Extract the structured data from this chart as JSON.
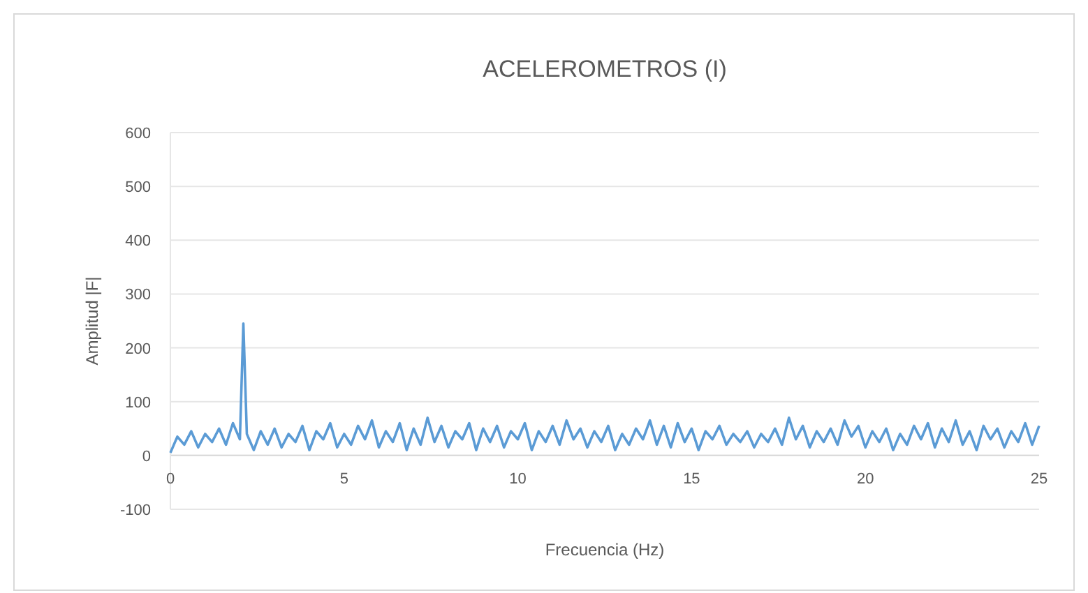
{
  "chart_data": {
    "type": "line",
    "title": "ACELEROMETROS (I)",
    "xlabel": "Frecuencia (Hz)",
    "ylabel": "Amplitud |F|",
    "x": [
      0,
      0.2,
      0.4,
      0.6,
      0.8,
      1.0,
      1.2,
      1.4,
      1.6,
      1.8,
      2.0,
      2.1,
      2.2,
      2.4,
      2.6,
      2.8,
      3.0,
      3.2,
      3.4,
      3.6,
      3.8,
      4.0,
      4.2,
      4.4,
      4.6,
      4.8,
      5.0,
      5.2,
      5.4,
      5.6,
      5.8,
      6.0,
      6.2,
      6.4,
      6.6,
      6.8,
      7.0,
      7.2,
      7.4,
      7.6,
      7.8,
      8.0,
      8.2,
      8.4,
      8.6,
      8.8,
      9.0,
      9.2,
      9.4,
      9.6,
      9.8,
      10.0,
      10.2,
      10.4,
      10.6,
      10.8,
      11.0,
      11.2,
      11.4,
      11.6,
      11.8,
      12.0,
      12.2,
      12.4,
      12.6,
      12.8,
      13.0,
      13.2,
      13.4,
      13.6,
      13.8,
      14.0,
      14.2,
      14.4,
      14.6,
      14.8,
      15.0,
      15.2,
      15.4,
      15.6,
      15.8,
      16.0,
      16.2,
      16.4,
      16.6,
      16.8,
      17.0,
      17.2,
      17.4,
      17.6,
      17.8,
      18.0,
      18.2,
      18.4,
      18.6,
      18.8,
      19.0,
      19.2,
      19.4,
      19.6,
      19.8,
      20.0,
      20.2,
      20.4,
      20.6,
      20.8,
      21.0,
      21.2,
      21.4,
      21.6,
      21.8,
      22.0,
      22.2,
      22.4,
      22.6,
      22.8,
      23.0,
      23.2,
      23.4,
      23.6,
      23.8,
      24.0,
      24.2,
      24.4,
      24.6,
      24.8,
      25.0
    ],
    "series": [
      {
        "color": "#5b9bd5",
        "values": [
          5,
          35,
          20,
          45,
          15,
          40,
          25,
          50,
          20,
          60,
          30,
          245,
          40,
          10,
          45,
          20,
          50,
          15,
          40,
          25,
          55,
          10,
          45,
          30,
          60,
          15,
          40,
          20,
          55,
          30,
          65,
          15,
          45,
          25,
          60,
          10,
          50,
          20,
          70,
          25,
          55,
          15,
          45,
          30,
          60,
          10,
          50,
          25,
          55,
          15,
          45,
          30,
          60,
          10,
          45,
          25,
          55,
          20,
          65,
          30,
          50,
          15,
          45,
          25,
          55,
          10,
          40,
          20,
          50,
          30,
          65,
          20,
          55,
          15,
          60,
          25,
          50,
          10,
          45,
          30,
          55,
          20,
          40,
          25,
          45,
          15,
          40,
          25,
          50,
          20,
          70,
          30,
          55,
          15,
          45,
          25,
          50,
          20,
          65,
          35,
          55,
          15,
          45,
          25,
          50,
          10,
          40,
          20,
          55,
          30,
          60,
          15,
          50,
          25,
          65,
          20,
          45,
          10,
          55,
          30,
          50,
          15,
          45,
          25,
          60,
          20,
          55
        ]
      }
    ],
    "xlim": [
      0,
      25
    ],
    "xticks": [
      0,
      5,
      10,
      15,
      20,
      25
    ],
    "ylim": [
      -100,
      600
    ],
    "yticks": [
      {
        "value": -100,
        "label": "-100"
      },
      0,
      100,
      200,
      300,
      400,
      500,
      600
    ],
    "grid": "y",
    "marker": "none",
    "line_style": "solid"
  }
}
